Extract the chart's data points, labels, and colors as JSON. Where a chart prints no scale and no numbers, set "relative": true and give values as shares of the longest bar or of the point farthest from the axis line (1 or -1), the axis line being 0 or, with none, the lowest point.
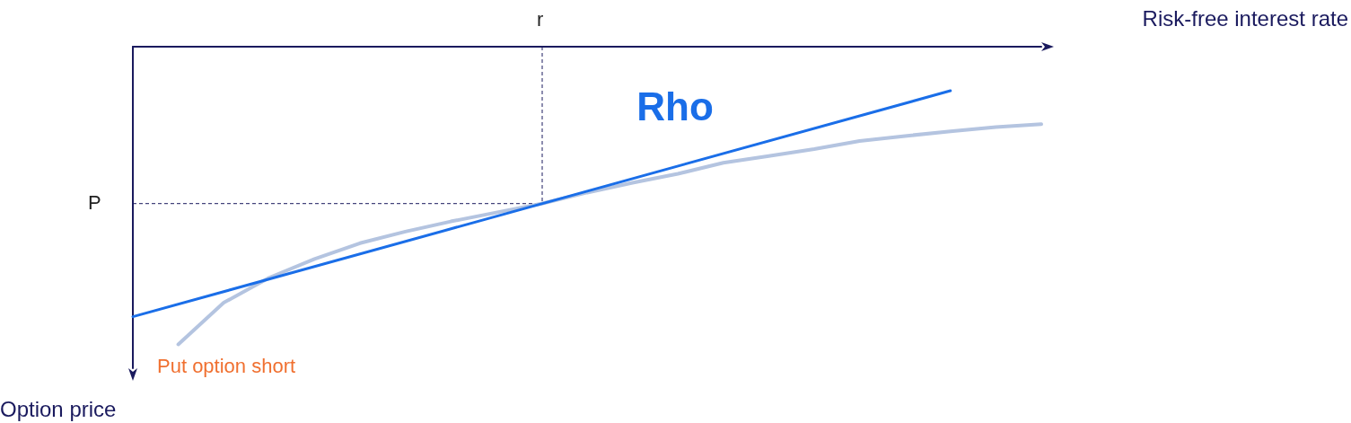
{
  "chart_data": {
    "type": "line",
    "relative": true,
    "xlabel": "Risk-free interest rate",
    "ylabel": "Option price",
    "legend": false,
    "grid": false,
    "marker": "none",
    "line_style": "solid",
    "categories": [
      null,
      null,
      null,
      null,
      null,
      null,
      null,
      null,
      null,
      null,
      null,
      null,
      null,
      null,
      null,
      null,
      null,
      null,
      null,
      null,
      null
    ],
    "annotations": [
      "Put option short",
      "r"
    ],
    "series": [
      {
        "color": "#b4c4e0",
        "values": [
          null,
          -1,
          -0.86,
          -0.776,
          -0.713,
          -0.66,
          -0.621,
          -0.587,
          -0.557,
          -0.527,
          -0.49,
          -0.457,
          -0.427,
          -0.39,
          -0.367,
          -0.344,
          -0.317,
          -0.3,
          -0.284,
          -0.27,
          -0.26
        ]
      },
      {
        "name": "Rho",
        "color": "#1a6ee8",
        "values": [
          -0.907,
          null,
          null,
          null,
          null,
          null,
          null,
          null,
          null,
          null,
          null,
          null,
          null,
          null,
          null,
          null,
          null,
          null,
          -0.148,
          null,
          null
        ]
      }
    ],
    "ref_lines": [
      {
        "axis": "y",
        "value": -0.527,
        "label": "P",
        "color": "#1a1a5e",
        "line_style": "dashed"
      }
    ]
  }
}
